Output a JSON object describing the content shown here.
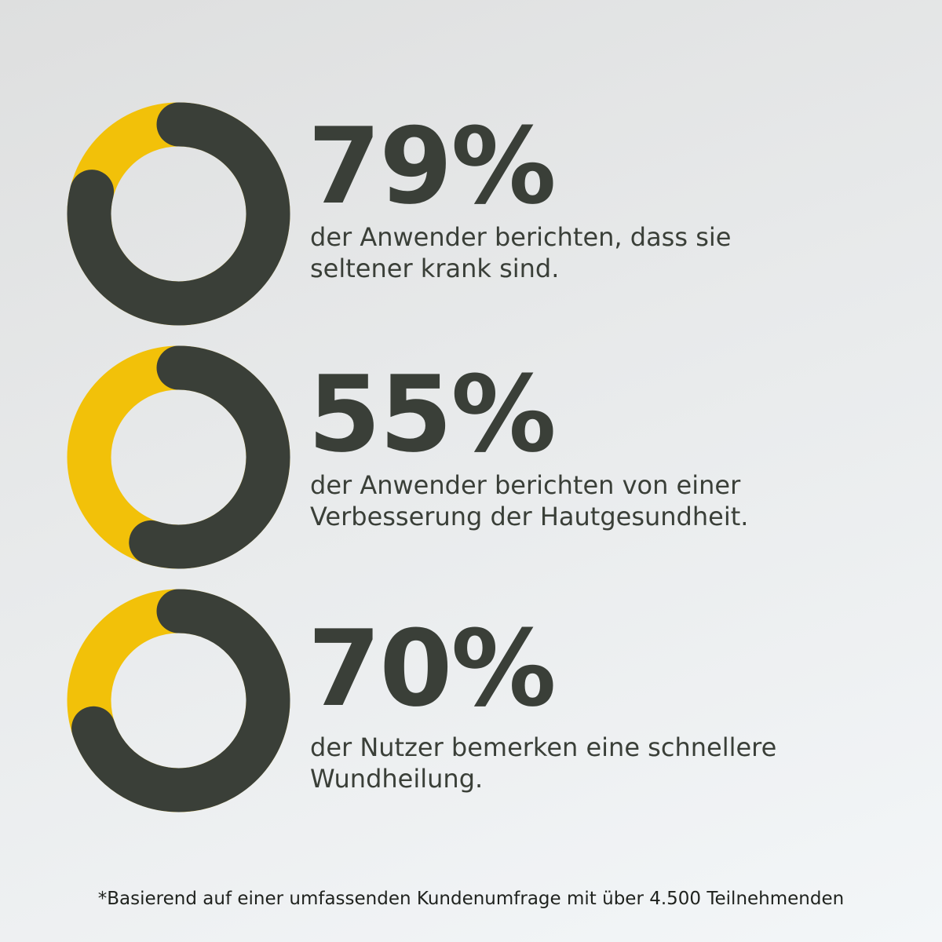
{
  "colors": {
    "dark": "#3a3f38",
    "accent": "#f2c109"
  },
  "chart_data": {
    "type": "pie",
    "variant": "donut",
    "items": [
      {
        "value": 79,
        "big": "79%",
        "desc1": "der Anwender berichten, dass sie",
        "desc2": "seltener krank sind."
      },
      {
        "value": 55,
        "big": "55%",
        "desc1": "der Anwender berichten von einer",
        "desc2": "Verbesserung der Hautgesundheit."
      },
      {
        "value": 70,
        "big": "70%",
        "desc1": "der Nutzer bemerken eine schnellere",
        "desc2": "Wundheilung."
      }
    ]
  },
  "footnote": "*Basierend auf einer umfassenden Kundenumfrage mit über 4.500 Teilnehmenden"
}
